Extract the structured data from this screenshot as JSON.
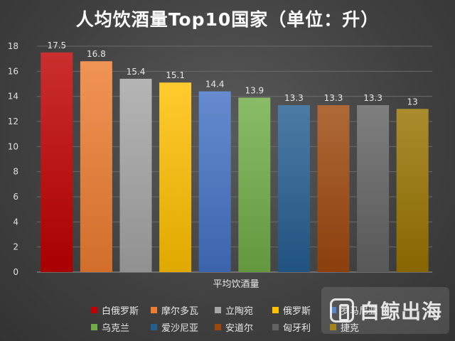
{
  "chart_data": {
    "type": "bar",
    "title": "人均饮酒量Top10国家（单位：升）",
    "xlabel": "平均饮酒量",
    "ylabel": "",
    "ylim": [
      0,
      18
    ],
    "yticks": [
      0,
      2,
      4,
      6,
      8,
      10,
      12,
      14,
      16,
      18
    ],
    "grid": true,
    "legend_position": "bottom",
    "series": [
      {
        "name": "白俄罗斯",
        "value": 17.5,
        "label": "17.5",
        "color": "#C00000"
      },
      {
        "name": "摩尔多瓦",
        "value": 16.8,
        "label": "16.8",
        "color": "#ED7D31"
      },
      {
        "name": "立陶宛",
        "value": 15.4,
        "label": "15.4",
        "color": "#A5A5A5"
      },
      {
        "name": "俄罗斯",
        "value": 15.1,
        "label": "15.1",
        "color": "#FFC000"
      },
      {
        "name": "罗马尼亚",
        "value": 14.4,
        "label": "14.4",
        "color": "#4472C4"
      },
      {
        "name": "乌克兰",
        "value": 13.9,
        "label": "13.9",
        "color": "#70AD47"
      },
      {
        "name": "爱沙尼亚",
        "value": 13.3,
        "label": "13.3",
        "color": "#255E91"
      },
      {
        "name": "安道尔",
        "value": 13.3,
        "label": "13.3",
        "color": "#9E480E"
      },
      {
        "name": "匈牙利",
        "value": 13.3,
        "label": "13.3",
        "color": "#636363"
      },
      {
        "name": "捷克",
        "value": 13,
        "label": "13",
        "color": "#997300"
      }
    ]
  },
  "watermark": {
    "text": "白鲸出海"
  }
}
